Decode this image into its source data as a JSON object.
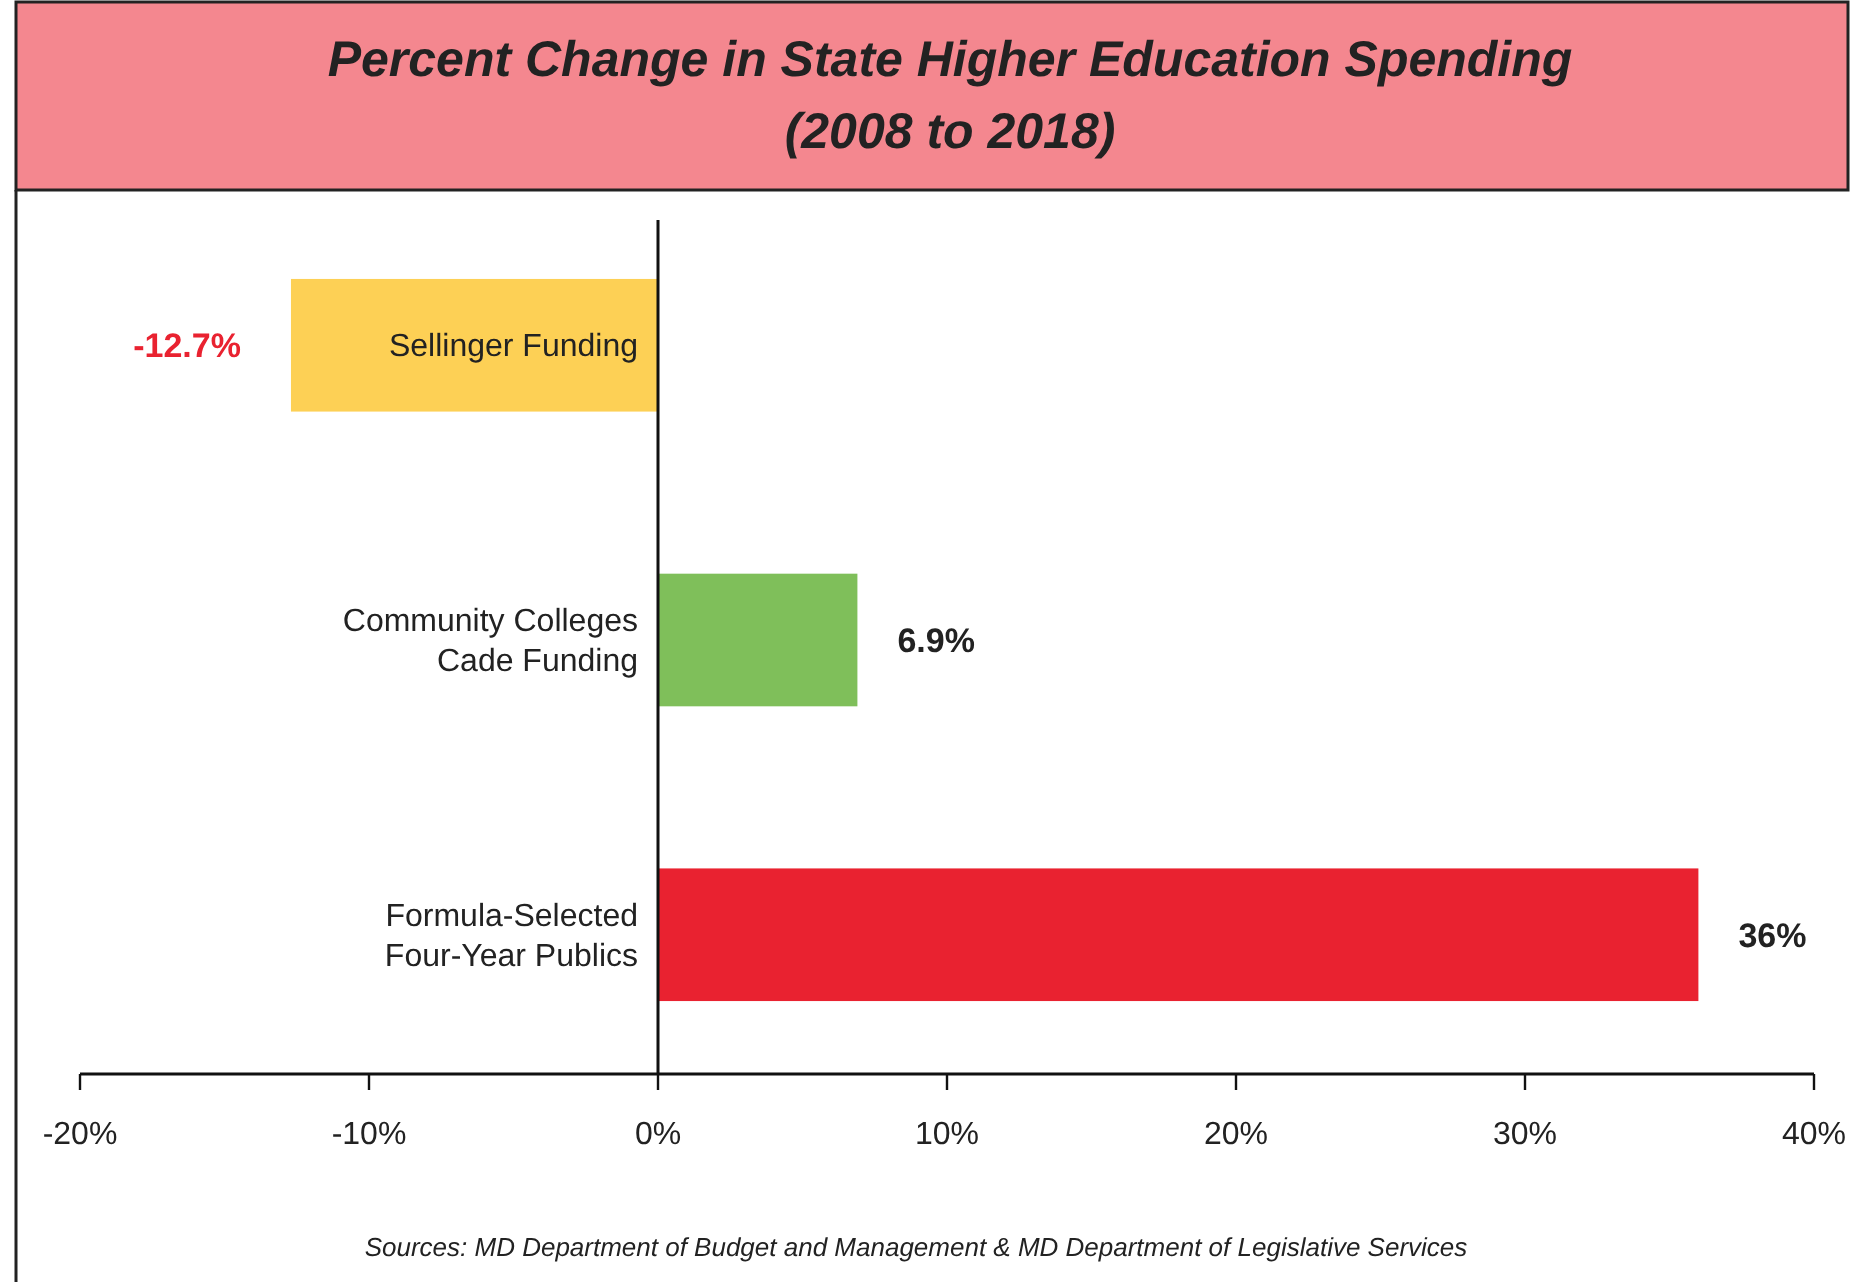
{
  "chart_data": {
    "type": "bar",
    "orientation": "horizontal",
    "title": "Percent Change in State Higher Education Spending",
    "subtitle": "(2008 to 2018)",
    "categories": [
      "Sellinger Funding",
      "Community Colleges\nCade Funding",
      "Formula-Selected\nFour-Year Publics"
    ],
    "values": [
      -12.7,
      6.9,
      36
    ],
    "colors": [
      "#fdd055",
      "#7fbf5a",
      "#e92230"
    ],
    "value_labels": [
      "-12.7%",
      "6.9%",
      "36%"
    ],
    "xlim": [
      -20,
      40
    ],
    "xticks": [
      {
        "value": -20,
        "label": "-20%"
      },
      {
        "value": -10,
        "label": "-10%"
      },
      {
        "value": 0,
        "label": "0%"
      },
      {
        "value": 10,
        "label": "10%"
      },
      {
        "value": 20,
        "label": "20%"
      },
      {
        "value": 30,
        "label": "30%"
      },
      {
        "value": 40,
        "label": "40%"
      }
    ],
    "annotations": [
      "Sources: MD Department of Budget and Management & MD Department of Legislative Services"
    ]
  }
}
